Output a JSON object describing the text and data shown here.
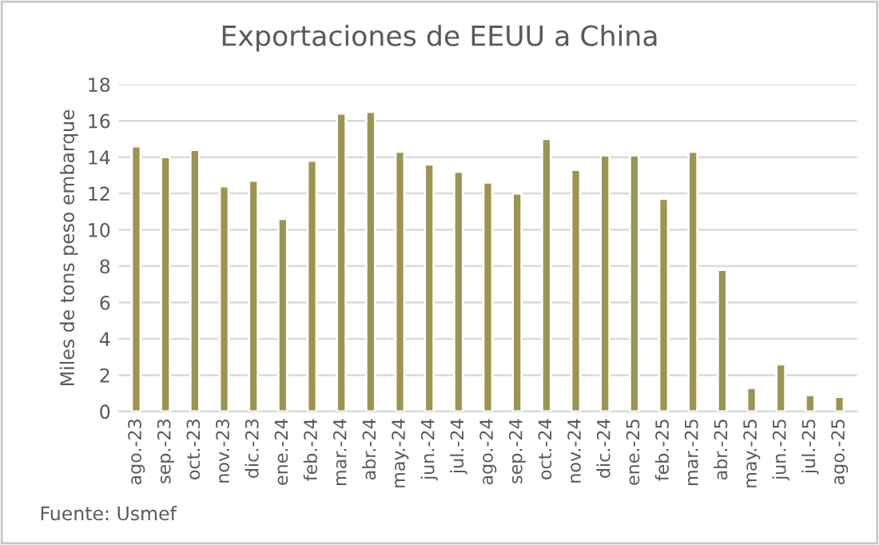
{
  "chart_data": {
    "type": "bar",
    "title": "Exportaciones de EEUU a China",
    "ylabel": "Miles de tons peso embarque",
    "categories": [
      "ago.-23",
      "sep.-23",
      "oct.-23",
      "nov.-23",
      "dic.-23",
      "ene.-24",
      "feb.-24",
      "mar.-24",
      "abr.-24",
      "may.-24",
      "jun.-24",
      "jul.-24",
      "ago.-24",
      "sep.-24",
      "oct.-24",
      "nov.-24",
      "dic.-24",
      "ene.-25",
      "feb.-25",
      "mar.-25",
      "abr.-25",
      "may.-25",
      "jun.-25",
      "jul.-25",
      "ago.-25"
    ],
    "values": [
      14.6,
      14.0,
      14.4,
      12.4,
      12.7,
      10.6,
      13.8,
      16.4,
      16.5,
      14.3,
      13.6,
      13.2,
      12.6,
      12.0,
      15.0,
      13.3,
      14.1,
      14.1,
      11.7,
      14.3,
      7.8,
      1.3,
      2.6,
      0.9,
      0.8
    ],
    "color": "#9c9450",
    "ylim": [
      0,
      18
    ],
    "yticks": [
      0,
      2,
      4,
      6,
      8,
      10,
      12,
      14,
      16,
      18
    ],
    "grid": "y",
    "annotations": [
      "Fuente: Usmef"
    ]
  }
}
